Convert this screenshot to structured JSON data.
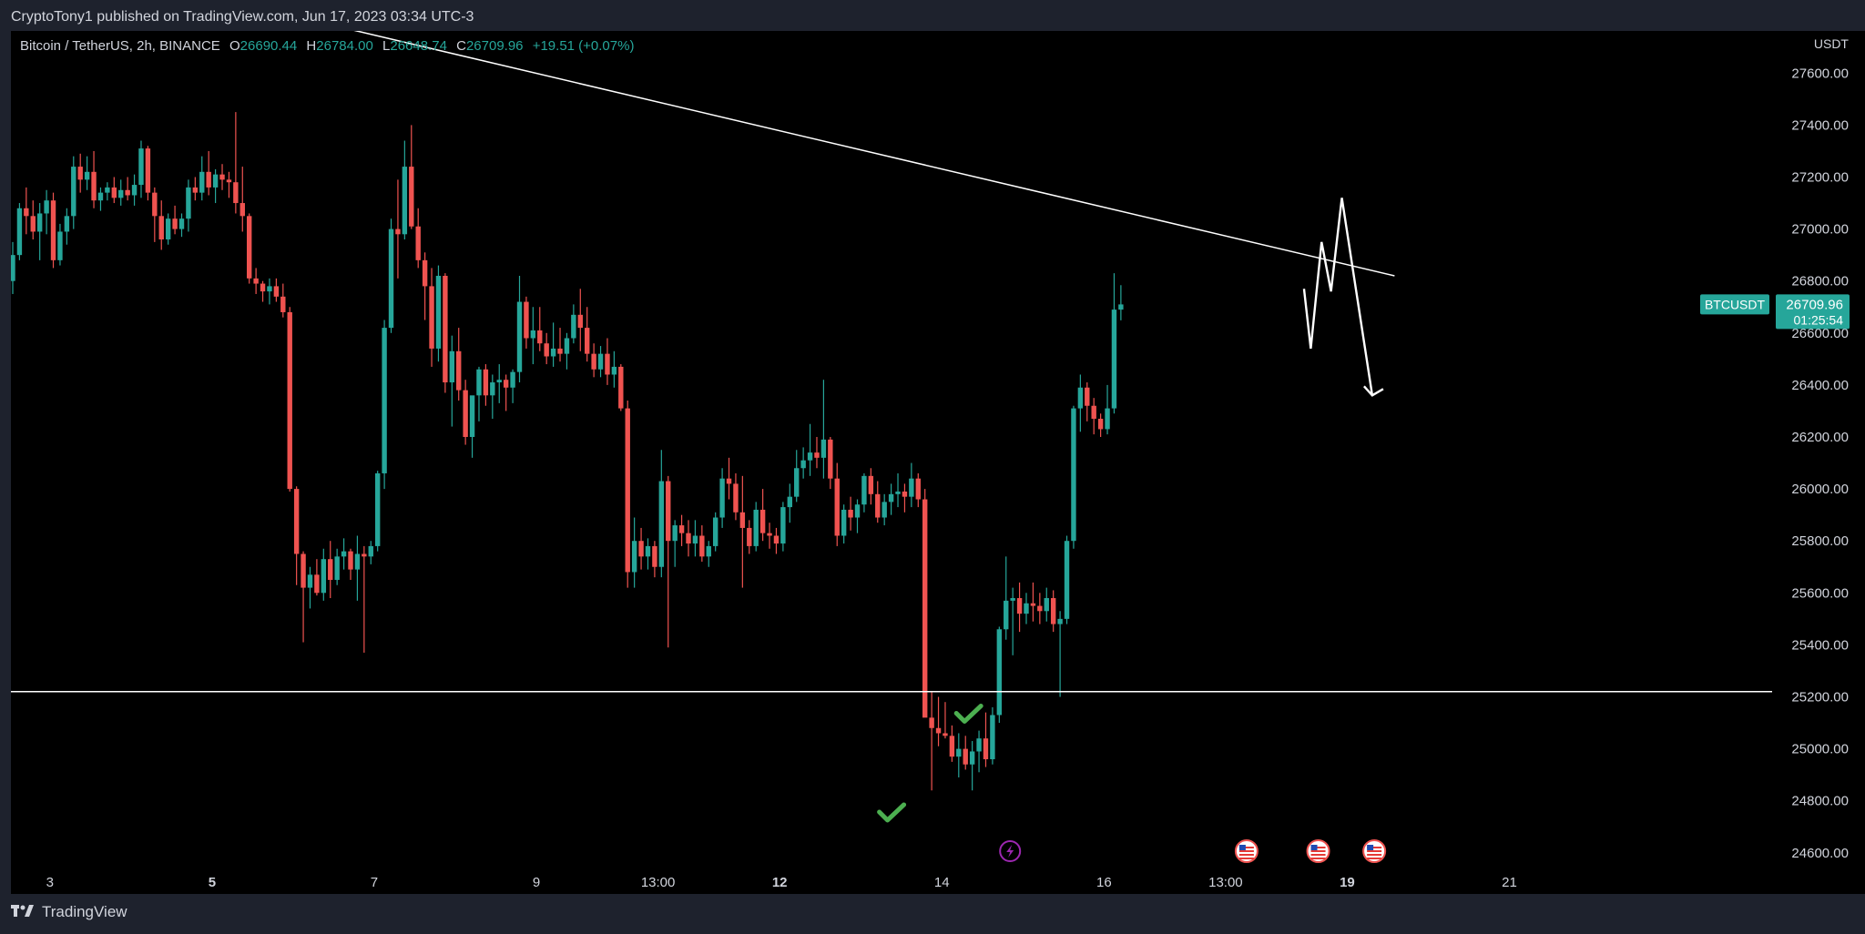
{
  "header": {
    "published_text": "CryptoTony1 published on TradingView.com, Jun 17, 2023 03:34 UTC-3"
  },
  "legend": {
    "symbol": "Bitcoin / TetherUS, 2h, BINANCE",
    "o_label": "O",
    "o_value": "26690.44",
    "h_label": "H",
    "h_value": "26784.00",
    "l_label": "L",
    "l_value": "26648.74",
    "c_label": "C",
    "c_value": "26709.96",
    "change": "+19.51 (+0.07%)"
  },
  "price_scale": {
    "currency": "USDT",
    "current_symbol": "BTCUSDT",
    "current_price": "26709.96",
    "countdown": "01:25:54"
  },
  "footer": {
    "brand": "TradingView"
  },
  "colors": {
    "up": "#26a69a",
    "down": "#ef5350",
    "background": "#000000",
    "frame": "#1e222d",
    "drawing": "#ffffff",
    "check": "#4caf50",
    "event_purple": "#9c27b0"
  },
  "chart_data": {
    "type": "candlestick",
    "title": "Bitcoin / TetherUS, 2h, BINANCE",
    "ylabel": "USDT",
    "ylim": [
      24550,
      27710
    ],
    "y_ticks": [
      "27600.00",
      "27400.00",
      "27200.00",
      "27000.00",
      "26800.00",
      "26600.00",
      "26400.00",
      "26200.00",
      "26000.00",
      "25800.00",
      "25600.00",
      "25400.00",
      "25200.00",
      "25000.00",
      "24800.00",
      "24600.00"
    ],
    "x_ticks": [
      {
        "label": "3",
        "bar": 5.5,
        "bold": false
      },
      {
        "label": "5",
        "bar": 29.5,
        "bold": true
      },
      {
        "label": "7",
        "bar": 53.5,
        "bold": false
      },
      {
        "label": "9",
        "bar": 77.5,
        "bold": false
      },
      {
        "label": "13:00",
        "bar": 95.5,
        "bold": false
      },
      {
        "label": "12",
        "bar": 113.5,
        "bold": true
      },
      {
        "label": "14",
        "bar": 137.5,
        "bold": false
      },
      {
        "label": "16",
        "bar": 161.5,
        "bold": false
      },
      {
        "label": "13:00",
        "bar": 179.5,
        "bold": false
      },
      {
        "label": "19",
        "bar": 197.5,
        "bold": true
      },
      {
        "label": "21",
        "bar": 221.5,
        "bold": false
      }
    ],
    "candles": [
      [
        26800,
        26950,
        26750,
        26900
      ],
      [
        26900,
        27100,
        26880,
        27080
      ],
      [
        27080,
        27160,
        26980,
        27050
      ],
      [
        27050,
        27110,
        26960,
        26990
      ],
      [
        26990,
        27100,
        26880,
        27060
      ],
      [
        27060,
        27150,
        26980,
        27110
      ],
      [
        27110,
        27140,
        26850,
        26880
      ],
      [
        26880,
        27020,
        26860,
        26990
      ],
      [
        26990,
        27080,
        26940,
        27050
      ],
      [
        27050,
        27280,
        27000,
        27240
      ],
      [
        27240,
        27290,
        27140,
        27190
      ],
      [
        27190,
        27280,
        27150,
        27220
      ],
      [
        27220,
        27300,
        27080,
        27110
      ],
      [
        27110,
        27160,
        27070,
        27140
      ],
      [
        27140,
        27180,
        27110,
        27160
      ],
      [
        27160,
        27200,
        27100,
        27120
      ],
      [
        27120,
        27190,
        27090,
        27150
      ],
      [
        27150,
        27200,
        27110,
        27130
      ],
      [
        27130,
        27210,
        27090,
        27170
      ],
      [
        27170,
        27340,
        27120,
        27310
      ],
      [
        27310,
        27320,
        27110,
        27140
      ],
      [
        27140,
        27160,
        26950,
        27050
      ],
      [
        27050,
        27110,
        26920,
        26960
      ],
      [
        26960,
        27060,
        26940,
        27040
      ],
      [
        27040,
        27090,
        26980,
        27000
      ],
      [
        27000,
        27060,
        26970,
        27040
      ],
      [
        27040,
        27190,
        26990,
        27160
      ],
      [
        27160,
        27200,
        27110,
        27140
      ],
      [
        27140,
        27280,
        27110,
        27220
      ],
      [
        27220,
        27300,
        27130,
        27160
      ],
      [
        27160,
        27230,
        27100,
        27210
      ],
      [
        27210,
        27250,
        27150,
        27190
      ],
      [
        27190,
        27220,
        27120,
        27180
      ],
      [
        27180,
        27450,
        27060,
        27100
      ],
      [
        27100,
        27240,
        26990,
        27050
      ],
      [
        27050,
        27060,
        26790,
        26810
      ],
      [
        26810,
        26850,
        26750,
        26790
      ],
      [
        26790,
        26800,
        26720,
        26760
      ],
      [
        26760,
        26810,
        26710,
        26780
      ],
      [
        26780,
        26810,
        26720,
        26740
      ],
      [
        26740,
        26790,
        26660,
        26680
      ],
      [
        26680,
        26700,
        25990,
        26000
      ],
      [
        26000,
        26010,
        25630,
        25750
      ],
      [
        25750,
        25760,
        25410,
        25620
      ],
      [
        25620,
        25700,
        25540,
        25670
      ],
      [
        25670,
        25730,
        25590,
        25600
      ],
      [
        25600,
        25770,
        25570,
        25730
      ],
      [
        25730,
        25800,
        25580,
        25650
      ],
      [
        25650,
        25770,
        25630,
        25740
      ],
      [
        25740,
        25810,
        25690,
        25760
      ],
      [
        25760,
        25770,
        25650,
        25690
      ],
      [
        25690,
        25820,
        25570,
        25750
      ],
      [
        25750,
        25780,
        25370,
        25740
      ],
      [
        25740,
        25800,
        25710,
        25780
      ],
      [
        25780,
        26070,
        25760,
        26060
      ],
      [
        26060,
        26650,
        26000,
        26620
      ],
      [
        26620,
        27040,
        26600,
        27000
      ],
      [
        27000,
        27190,
        26810,
        26980
      ],
      [
        26980,
        27340,
        26960,
        27240
      ],
      [
        27240,
        27400,
        27000,
        27010
      ],
      [
        27010,
        27080,
        26850,
        26880
      ],
      [
        26880,
        26910,
        26650,
        26780
      ],
      [
        26780,
        26850,
        26470,
        26540
      ],
      [
        26540,
        26860,
        26490,
        26820
      ],
      [
        26820,
        26830,
        26370,
        26410
      ],
      [
        26410,
        26590,
        26240,
        26530
      ],
      [
        26530,
        26620,
        26340,
        26380
      ],
      [
        26380,
        26420,
        26170,
        26200
      ],
      [
        26200,
        26350,
        26120,
        26360
      ],
      [
        26360,
        26470,
        26260,
        26460
      ],
      [
        26460,
        26480,
        26320,
        26360
      ],
      [
        26360,
        26440,
        26270,
        26410
      ],
      [
        26410,
        26480,
        26330,
        26420
      ],
      [
        26420,
        26440,
        26300,
        26390
      ],
      [
        26390,
        26460,
        26330,
        26450
      ],
      [
        26450,
        26820,
        26410,
        26720
      ],
      [
        26720,
        26740,
        26540,
        26580
      ],
      [
        26580,
        26700,
        26480,
        26610
      ],
      [
        26610,
        26700,
        26530,
        26560
      ],
      [
        26560,
        26600,
        26480,
        26510
      ],
      [
        26510,
        26640,
        26470,
        26540
      ],
      [
        26540,
        26620,
        26490,
        26520
      ],
      [
        26520,
        26600,
        26460,
        26580
      ],
      [
        26580,
        26710,
        26560,
        26670
      ],
      [
        26670,
        26770,
        26530,
        26620
      ],
      [
        26620,
        26700,
        26490,
        26520
      ],
      [
        26520,
        26560,
        26430,
        26460
      ],
      [
        26460,
        26550,
        26430,
        26520
      ],
      [
        26520,
        26580,
        26400,
        26440
      ],
      [
        26440,
        26530,
        26390,
        26470
      ],
      [
        26470,
        26480,
        26300,
        26310
      ],
      [
        26310,
        26340,
        25620,
        25680
      ],
      [
        25680,
        25890,
        25620,
        25800
      ],
      [
        25800,
        25850,
        25690,
        25740
      ],
      [
        25740,
        25810,
        25690,
        25780
      ],
      [
        25780,
        25800,
        25660,
        25700
      ],
      [
        25700,
        26150,
        25660,
        26030
      ],
      [
        26030,
        26050,
        25390,
        25800
      ],
      [
        25800,
        25880,
        25700,
        25860
      ],
      [
        25860,
        25900,
        25780,
        25830
      ],
      [
        25830,
        25880,
        25740,
        25790
      ],
      [
        25790,
        25880,
        25740,
        25820
      ],
      [
        25820,
        25860,
        25720,
        25740
      ],
      [
        25740,
        25800,
        25700,
        25780
      ],
      [
        25780,
        25910,
        25760,
        25890
      ],
      [
        25890,
        26080,
        25850,
        26040
      ],
      [
        26040,
        26120,
        25960,
        26020
      ],
      [
        26020,
        26060,
        25880,
        25910
      ],
      [
        25910,
        26050,
        25620,
        25850
      ],
      [
        25850,
        25880,
        25750,
        25780
      ],
      [
        25780,
        25950,
        25760,
        25920
      ],
      [
        25920,
        26000,
        25800,
        25830
      ],
      [
        25830,
        25870,
        25770,
        25820
      ],
      [
        25820,
        25850,
        25750,
        25790
      ],
      [
        25790,
        25950,
        25760,
        25930
      ],
      [
        25930,
        26020,
        25870,
        25970
      ],
      [
        25970,
        26150,
        25950,
        26080
      ],
      [
        26080,
        26160,
        26040,
        26110
      ],
      [
        26110,
        26250,
        26050,
        26140
      ],
      [
        26140,
        26200,
        26080,
        26120
      ],
      [
        26120,
        26420,
        26040,
        26190
      ],
      [
        26190,
        26200,
        26000,
        26040
      ],
      [
        26040,
        26100,
        25780,
        25820
      ],
      [
        25820,
        25940,
        25790,
        25920
      ],
      [
        25920,
        25970,
        25840,
        25890
      ],
      [
        25890,
        25960,
        25830,
        25940
      ],
      [
        25940,
        26060,
        25910,
        26050
      ],
      [
        26050,
        26080,
        25940,
        25980
      ],
      [
        25980,
        26030,
        25870,
        25890
      ],
      [
        25890,
        25980,
        25860,
        25950
      ],
      [
        25950,
        26020,
        25900,
        25980
      ],
      [
        25980,
        26060,
        25930,
        25990
      ],
      [
        25990,
        26020,
        25910,
        25970
      ],
      [
        25970,
        26100,
        25930,
        26040
      ],
      [
        26040,
        26060,
        25930,
        25960
      ],
      [
        25960,
        26000,
        25150,
        25120
      ],
      [
        25120,
        25220,
        24840,
        25080
      ],
      [
        25080,
        25200,
        25010,
        25060
      ],
      [
        25060,
        25180,
        25040,
        25050
      ],
      [
        25050,
        25090,
        24950,
        24970
      ],
      [
        24970,
        25060,
        24890,
        25000
      ],
      [
        25000,
        25050,
        24920,
        24940
      ],
      [
        24940,
        25030,
        24840,
        24990
      ],
      [
        24990,
        25070,
        24910,
        25040
      ],
      [
        25040,
        25140,
        24930,
        24960
      ],
      [
        24960,
        25160,
        24940,
        25130
      ],
      [
        25130,
        25470,
        25100,
        25460
      ],
      [
        25460,
        25740,
        25420,
        25570
      ],
      [
        25570,
        25620,
        25360,
        25580
      ],
      [
        25580,
        25640,
        25450,
        25520
      ],
      [
        25520,
        25600,
        25480,
        25560
      ],
      [
        25560,
        25640,
        25490,
        25550
      ],
      [
        25550,
        25600,
        25480,
        25530
      ],
      [
        25530,
        25620,
        25490,
        25580
      ],
      [
        25580,
        25610,
        25450,
        25480
      ],
      [
        25480,
        25530,
        25200,
        25500
      ],
      [
        25500,
        25820,
        25480,
        25800
      ],
      [
        25800,
        26320,
        25770,
        26310
      ],
      [
        26310,
        26440,
        26220,
        26390
      ],
      [
        26390,
        26410,
        26260,
        26320
      ],
      [
        26320,
        26350,
        26210,
        26270
      ],
      [
        26270,
        26290,
        26200,
        26230
      ],
      [
        26230,
        26400,
        26210,
        26310
      ],
      [
        26310,
        26830,
        26290,
        26690
      ],
      [
        26690,
        26784,
        26648.74,
        26709.96
      ]
    ],
    "drawings": {
      "trendline": {
        "from": {
          "bar": 48,
          "price": 27780
        },
        "to": {
          "bar": 204.5,
          "price": 26820
        }
      },
      "support_line": {
        "price": 25220
      },
      "projection_path": [
        [
          191.1,
          26770
        ],
        [
          192.1,
          26540
        ],
        [
          193.7,
          26950
        ],
        [
          195.1,
          26760
        ],
        [
          196.7,
          27120
        ],
        [
          201.2,
          26360
        ]
      ],
      "checkmarks": [
        {
          "bar": 130,
          "price": 24750
        },
        {
          "bar": 141.4,
          "price": 25130
        }
      ]
    },
    "event_markers": [
      {
        "bar": 147.6,
        "type": "bolt-icon"
      },
      {
        "bar": 182.6,
        "type": "us-flag-icon"
      },
      {
        "bar": 193.2,
        "type": "us-flag-icon"
      },
      {
        "bar": 201.5,
        "type": "us-flag-icon"
      }
    ],
    "grid": false,
    "legend_position": "top-left"
  }
}
